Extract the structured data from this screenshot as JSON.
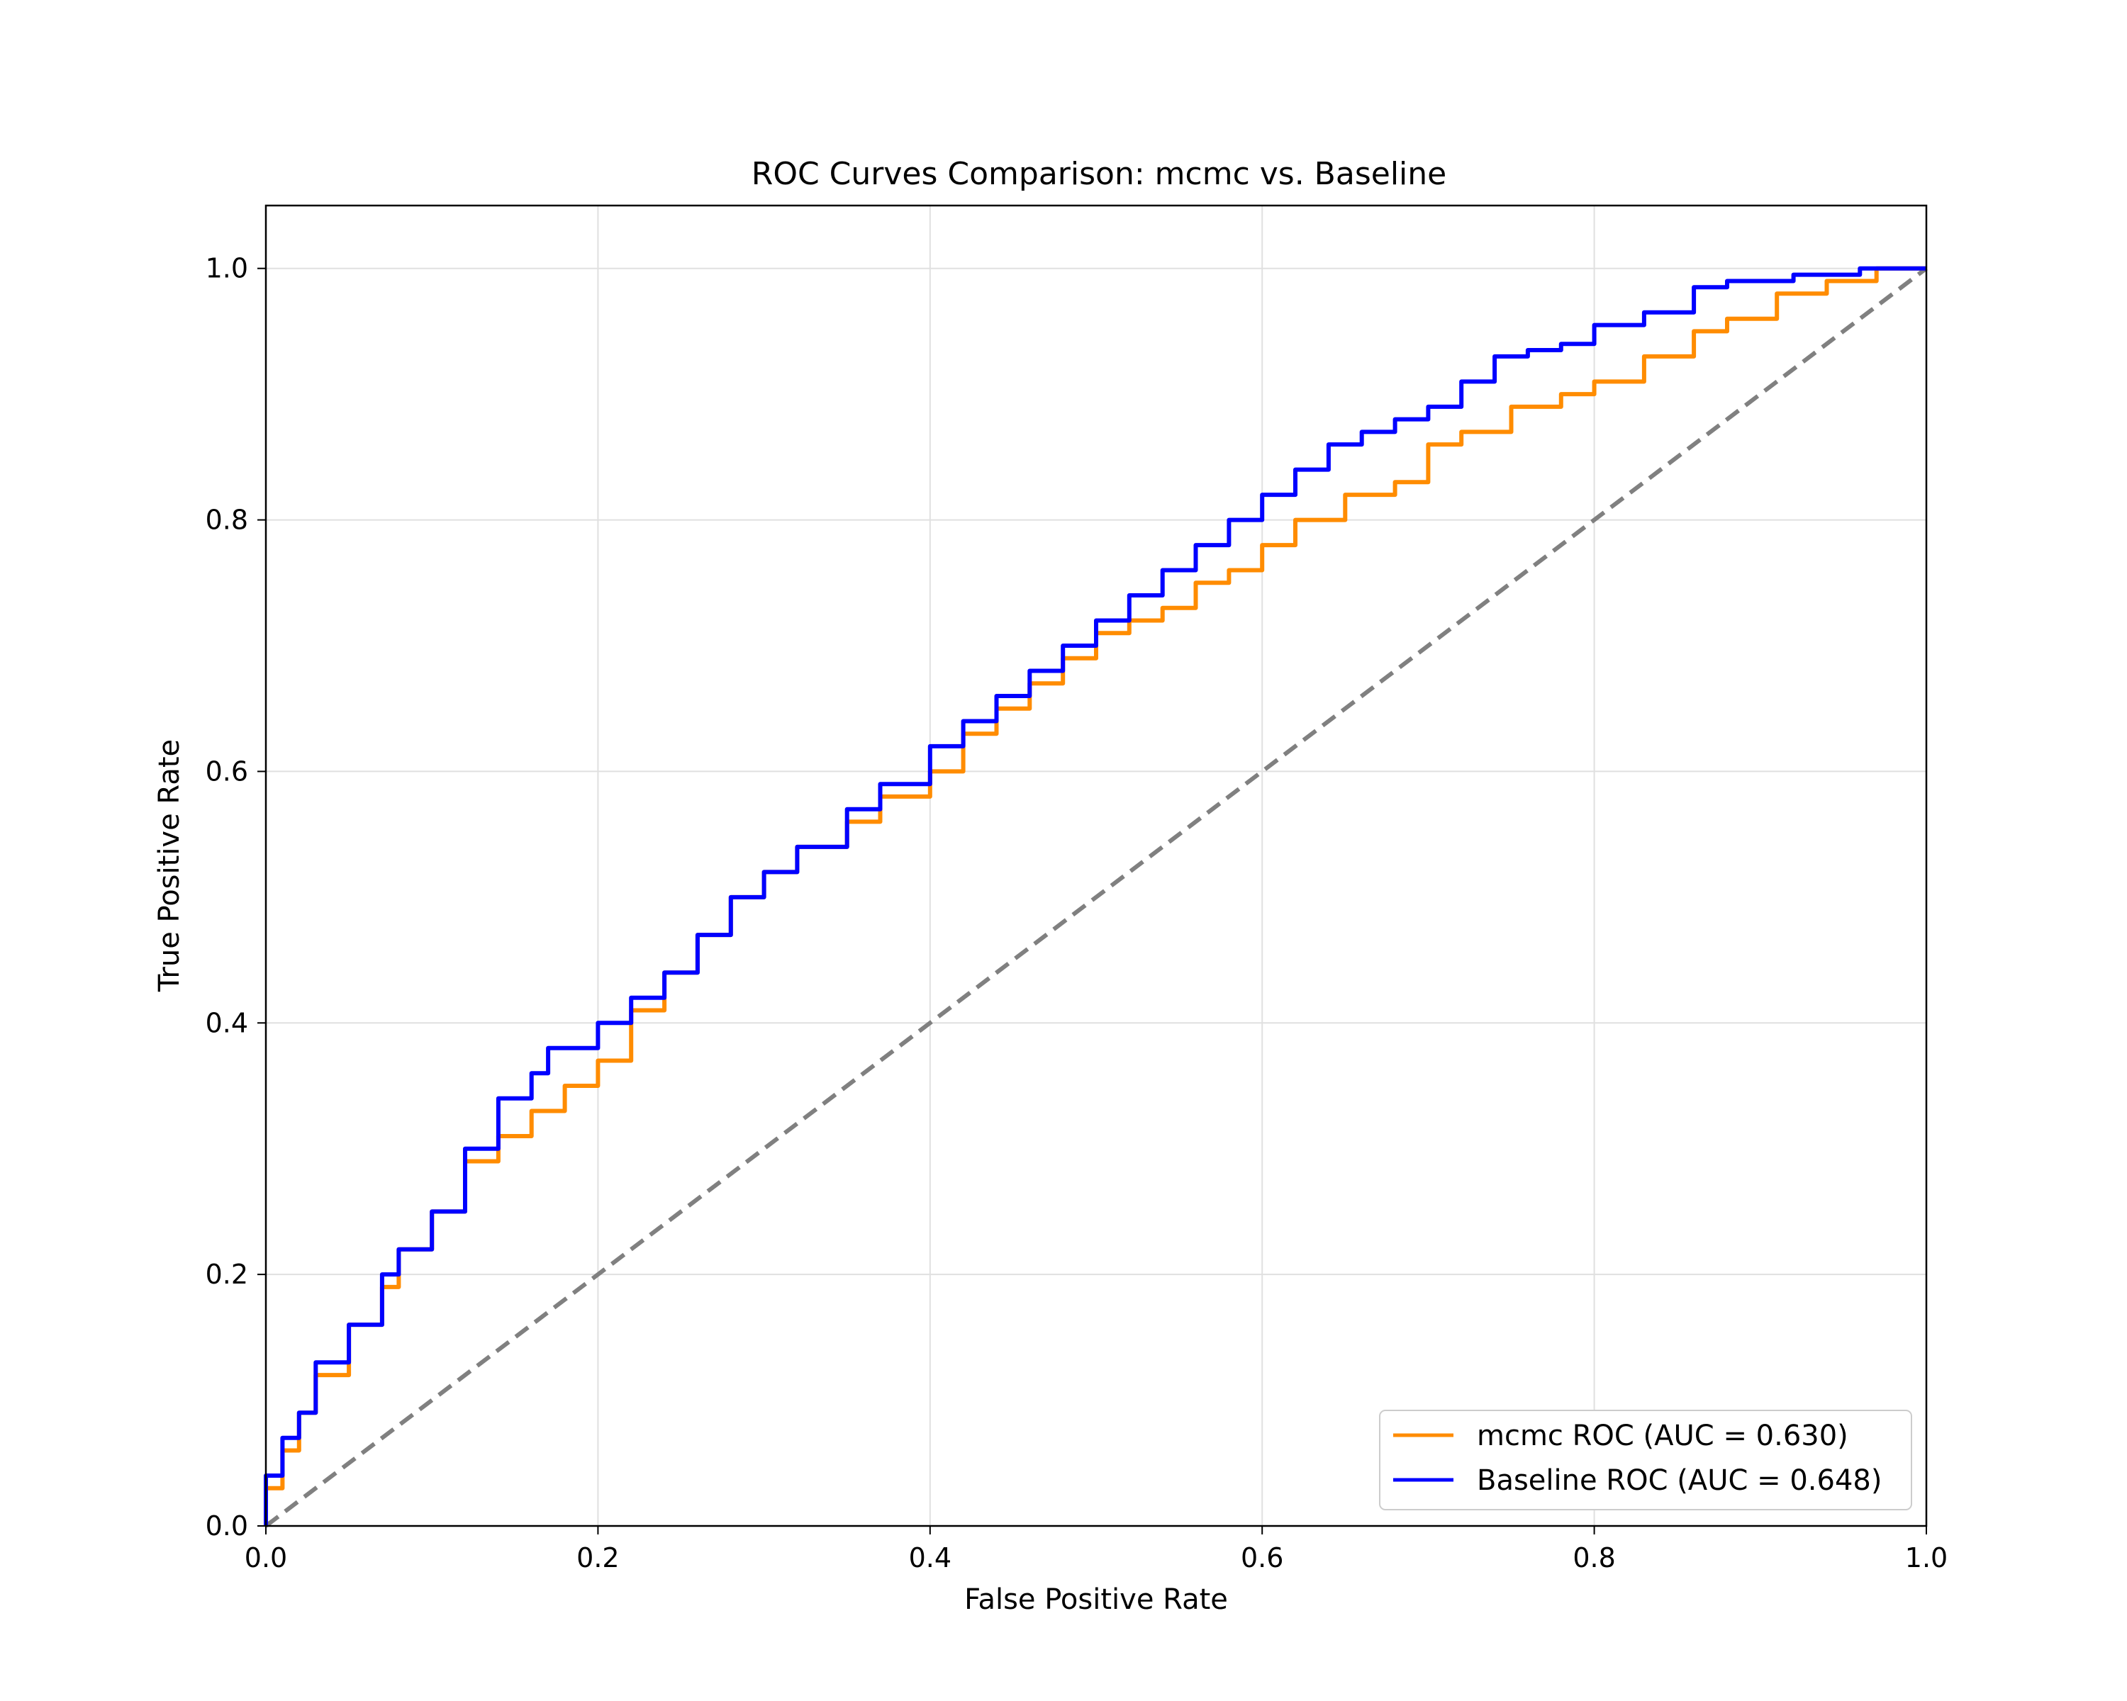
{
  "chart_data": {
    "type": "line",
    "title": "ROC Curves Comparison: mcmc vs. Baseline",
    "xlabel": "False Positive Rate",
    "ylabel": "True Positive Rate",
    "xlim": [
      0.0,
      1.0
    ],
    "ylim": [
      0.0,
      1.05
    ],
    "grid": true,
    "legend_position": "lower-right",
    "xticks": [
      "0.0",
      "0.2",
      "0.4",
      "0.6",
      "0.8",
      "1.0"
    ],
    "yticks": [
      "0.0",
      "0.2",
      "0.4",
      "0.6",
      "0.8",
      "1.0"
    ],
    "series": [
      {
        "name": "mcmc ROC (AUC = 0.630)",
        "color": "#ff8c00",
        "dashed": false,
        "points": [
          [
            0,
            0
          ],
          [
            0,
            0.01
          ],
          [
            0.01,
            0.03
          ],
          [
            0.02,
            0.06
          ],
          [
            0.03,
            0.09
          ],
          [
            0.05,
            0.12
          ],
          [
            0.07,
            0.16
          ],
          [
            0.08,
            0.19
          ],
          [
            0.1,
            0.22
          ],
          [
            0.12,
            0.25
          ],
          [
            0.14,
            0.29
          ],
          [
            0.16,
            0.31
          ],
          [
            0.18,
            0.33
          ],
          [
            0.2,
            0.35
          ],
          [
            0.22,
            0.37
          ],
          [
            0.24,
            0.41
          ],
          [
            0.26,
            0.44
          ],
          [
            0.28,
            0.47
          ],
          [
            0.3,
            0.5
          ],
          [
            0.32,
            0.52
          ],
          [
            0.35,
            0.54
          ],
          [
            0.37,
            0.56
          ],
          [
            0.4,
            0.58
          ],
          [
            0.42,
            0.6
          ],
          [
            0.44,
            0.63
          ],
          [
            0.46,
            0.65
          ],
          [
            0.48,
            0.67
          ],
          [
            0.5,
            0.69
          ],
          [
            0.52,
            0.71
          ],
          [
            0.54,
            0.72
          ],
          [
            0.56,
            0.73
          ],
          [
            0.58,
            0.75
          ],
          [
            0.6,
            0.76
          ],
          [
            0.62,
            0.78
          ],
          [
            0.65,
            0.8
          ],
          [
            0.68,
            0.82
          ],
          [
            0.7,
            0.83
          ],
          [
            0.72,
            0.86
          ],
          [
            0.75,
            0.87
          ],
          [
            0.78,
            0.89
          ],
          [
            0.8,
            0.9
          ],
          [
            0.83,
            0.91
          ],
          [
            0.86,
            0.93
          ],
          [
            0.88,
            0.95
          ],
          [
            0.91,
            0.96
          ],
          [
            0.94,
            0.98
          ],
          [
            0.97,
            0.99
          ],
          [
            1.0,
            1.0
          ]
        ]
      },
      {
        "name": "Baseline ROC (AUC = 0.648)",
        "color": "#0000ff",
        "dashed": false,
        "points": [
          [
            0,
            0
          ],
          [
            0,
            0.02
          ],
          [
            0.01,
            0.04
          ],
          [
            0.02,
            0.07
          ],
          [
            0.03,
            0.09
          ],
          [
            0.05,
            0.13
          ],
          [
            0.07,
            0.16
          ],
          [
            0.08,
            0.2
          ],
          [
            0.1,
            0.22
          ],
          [
            0.12,
            0.25
          ],
          [
            0.14,
            0.3
          ],
          [
            0.16,
            0.34
          ],
          [
            0.17,
            0.36
          ],
          [
            0.2,
            0.38
          ],
          [
            0.22,
            0.4
          ],
          [
            0.24,
            0.42
          ],
          [
            0.26,
            0.44
          ],
          [
            0.28,
            0.47
          ],
          [
            0.3,
            0.5
          ],
          [
            0.32,
            0.52
          ],
          [
            0.35,
            0.54
          ],
          [
            0.37,
            0.57
          ],
          [
            0.4,
            0.59
          ],
          [
            0.42,
            0.62
          ],
          [
            0.44,
            0.64
          ],
          [
            0.46,
            0.66
          ],
          [
            0.48,
            0.68
          ],
          [
            0.5,
            0.7
          ],
          [
            0.52,
            0.72
          ],
          [
            0.54,
            0.74
          ],
          [
            0.56,
            0.76
          ],
          [
            0.58,
            0.78
          ],
          [
            0.6,
            0.8
          ],
          [
            0.62,
            0.82
          ],
          [
            0.64,
            0.84
          ],
          [
            0.66,
            0.86
          ],
          [
            0.68,
            0.87
          ],
          [
            0.7,
            0.88
          ],
          [
            0.72,
            0.89
          ],
          [
            0.74,
            0.91
          ],
          [
            0.76,
            0.93
          ],
          [
            0.78,
            0.935
          ],
          [
            0.8,
            0.94
          ],
          [
            0.83,
            0.955
          ],
          [
            0.86,
            0.965
          ],
          [
            0.88,
            0.985
          ],
          [
            0.92,
            0.99
          ],
          [
            0.96,
            0.995
          ],
          [
            1.0,
            1.0
          ]
        ]
      },
      {
        "color": "#808080",
        "dashed": true,
        "points": [
          [
            0,
            0
          ],
          [
            1,
            1
          ]
        ]
      }
    ]
  }
}
